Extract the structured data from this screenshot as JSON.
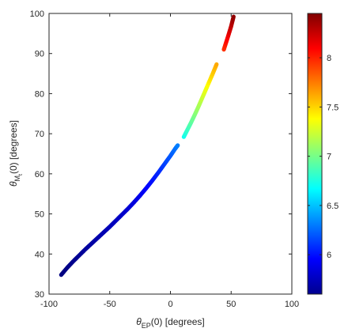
{
  "chart_data": {
    "type": "scatter",
    "title": "",
    "xlabel": {
      "symbol": "θ",
      "subscript": "EP",
      "suffix": "(0) [degrees]"
    },
    "ylabel": {
      "symbol": "θ",
      "subscript": "M",
      "subsubscript": "t",
      "suffix": "(0) [degrees]"
    },
    "xlim": [
      -100,
      100
    ],
    "ylim": [
      30,
      100
    ],
    "xticks": [
      "-100",
      "-50",
      "0",
      "50",
      "100"
    ],
    "yticks": [
      "30",
      "40",
      "50",
      "60",
      "70",
      "80",
      "90",
      "100"
    ],
    "grid": false,
    "colorbar": {
      "colormap": "jet",
      "range": [
        5.6,
        8.45
      ],
      "ticks": [
        "6",
        "6.5",
        "7",
        "7.5",
        "8"
      ]
    },
    "series": [
      {
        "points": [
          [
            -90,
            34.8,
            5.6
          ],
          [
            -85,
            36.6,
            5.62
          ],
          [
            -80,
            38.2,
            5.64
          ],
          [
            -75,
            39.7,
            5.66
          ],
          [
            -70,
            41.2,
            5.68
          ],
          [
            -65,
            42.6,
            5.7
          ],
          [
            -60,
            44.0,
            5.72
          ],
          [
            -55,
            45.4,
            5.74
          ],
          [
            -50,
            46.8,
            5.76
          ],
          [
            -45,
            48.3,
            5.78
          ],
          [
            -40,
            49.8,
            5.8
          ],
          [
            -35,
            51.3,
            5.83
          ],
          [
            -30,
            52.9,
            5.86
          ],
          [
            -25,
            54.6,
            5.9
          ],
          [
            -20,
            56.4,
            5.95
          ],
          [
            -15,
            58.3,
            6.0
          ],
          [
            -10,
            60.3,
            6.06
          ],
          [
            -5,
            62.4,
            6.13
          ],
          [
            0,
            64.5,
            6.2
          ],
          [
            4,
            66.3,
            6.27
          ],
          [
            6,
            67.1,
            6.31
          ]
        ]
      },
      {
        "points": [
          [
            11,
            69.2,
            6.7
          ],
          [
            14,
            71.0,
            6.82
          ],
          [
            17,
            72.8,
            6.92
          ],
          [
            20,
            74.7,
            7.02
          ],
          [
            23,
            76.7,
            7.12
          ],
          [
            26,
            78.8,
            7.22
          ],
          [
            29,
            80.9,
            7.32
          ],
          [
            32,
            83.0,
            7.42
          ],
          [
            35,
            85.1,
            7.52
          ],
          [
            38,
            87.3,
            7.62
          ]
        ]
      },
      {
        "points": [
          [
            44,
            91.0,
            7.95
          ],
          [
            46,
            92.9,
            8.05
          ],
          [
            48,
            94.8,
            8.15
          ],
          [
            50,
            96.8,
            8.26
          ],
          [
            52,
            99.2,
            8.4
          ]
        ]
      }
    ]
  }
}
